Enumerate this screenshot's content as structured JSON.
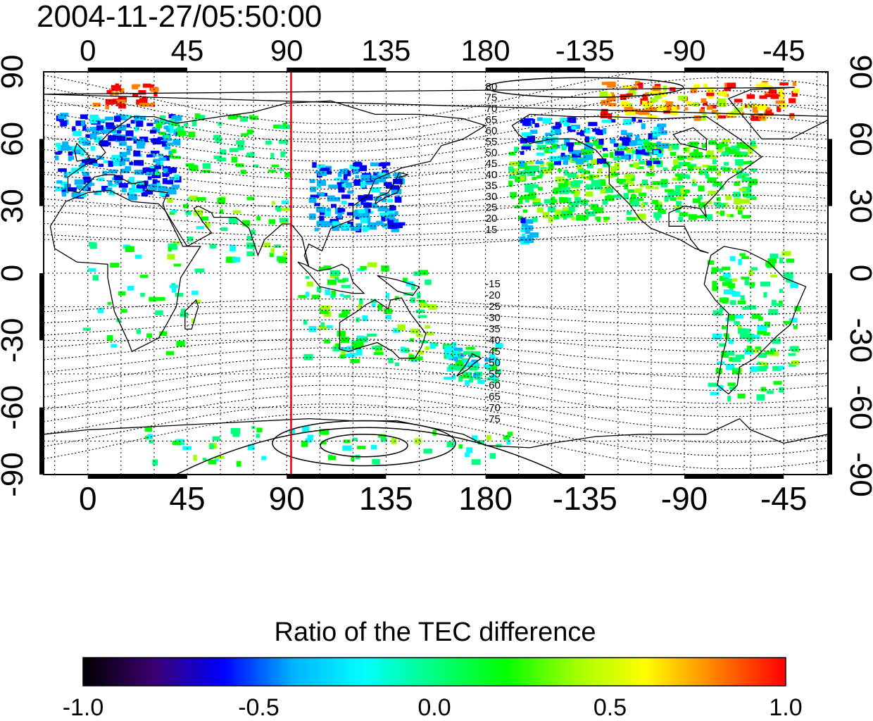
{
  "timestamp": "2004-11-27/05:50:00",
  "colorbar": {
    "title": "Ratio of the TEC difference",
    "min": -1.0,
    "max": 1.0,
    "ticks": [
      "-1.0",
      "-0.5",
      "0.0",
      "0.5",
      "1.0"
    ],
    "colors": [
      "#000000",
      "#3b0070",
      "#0000ff",
      "#00b4ff",
      "#00ffff",
      "#00ff80",
      "#00ff00",
      "#a0ff00",
      "#ffff00",
      "#ff8000",
      "#ff0000"
    ]
  },
  "map": {
    "lon_ticks": [
      "0",
      "45",
      "90",
      "135",
      "180",
      "-135",
      "-90",
      "-45"
    ],
    "lon_tick_values": [
      0,
      45,
      90,
      135,
      180,
      225,
      270,
      315
    ],
    "lat_ticks": [
      "90",
      "60",
      "30",
      "0",
      "-30",
      "-60",
      "-90"
    ],
    "lat_tick_values": [
      90,
      60,
      30,
      0,
      -30,
      -60,
      -90
    ],
    "lon_range": [
      -20,
      335
    ],
    "lat_range": [
      -90,
      90
    ],
    "grid": true,
    "vertical_marker_lon": 92,
    "vertical_marker_color": "#e00000",
    "contour_labels_north": [
      "80",
      "75",
      "70",
      "65",
      "60",
      "55",
      "50",
      "45",
      "40",
      "35",
      "30",
      "25",
      "20",
      "15"
    ],
    "contour_labels_south": [
      "-15",
      "-20",
      "-25",
      "-30",
      "-35",
      "-40",
      "-45",
      "-50",
      "-55",
      "-60",
      "-65",
      "-70",
      "-75"
    ]
  }
}
